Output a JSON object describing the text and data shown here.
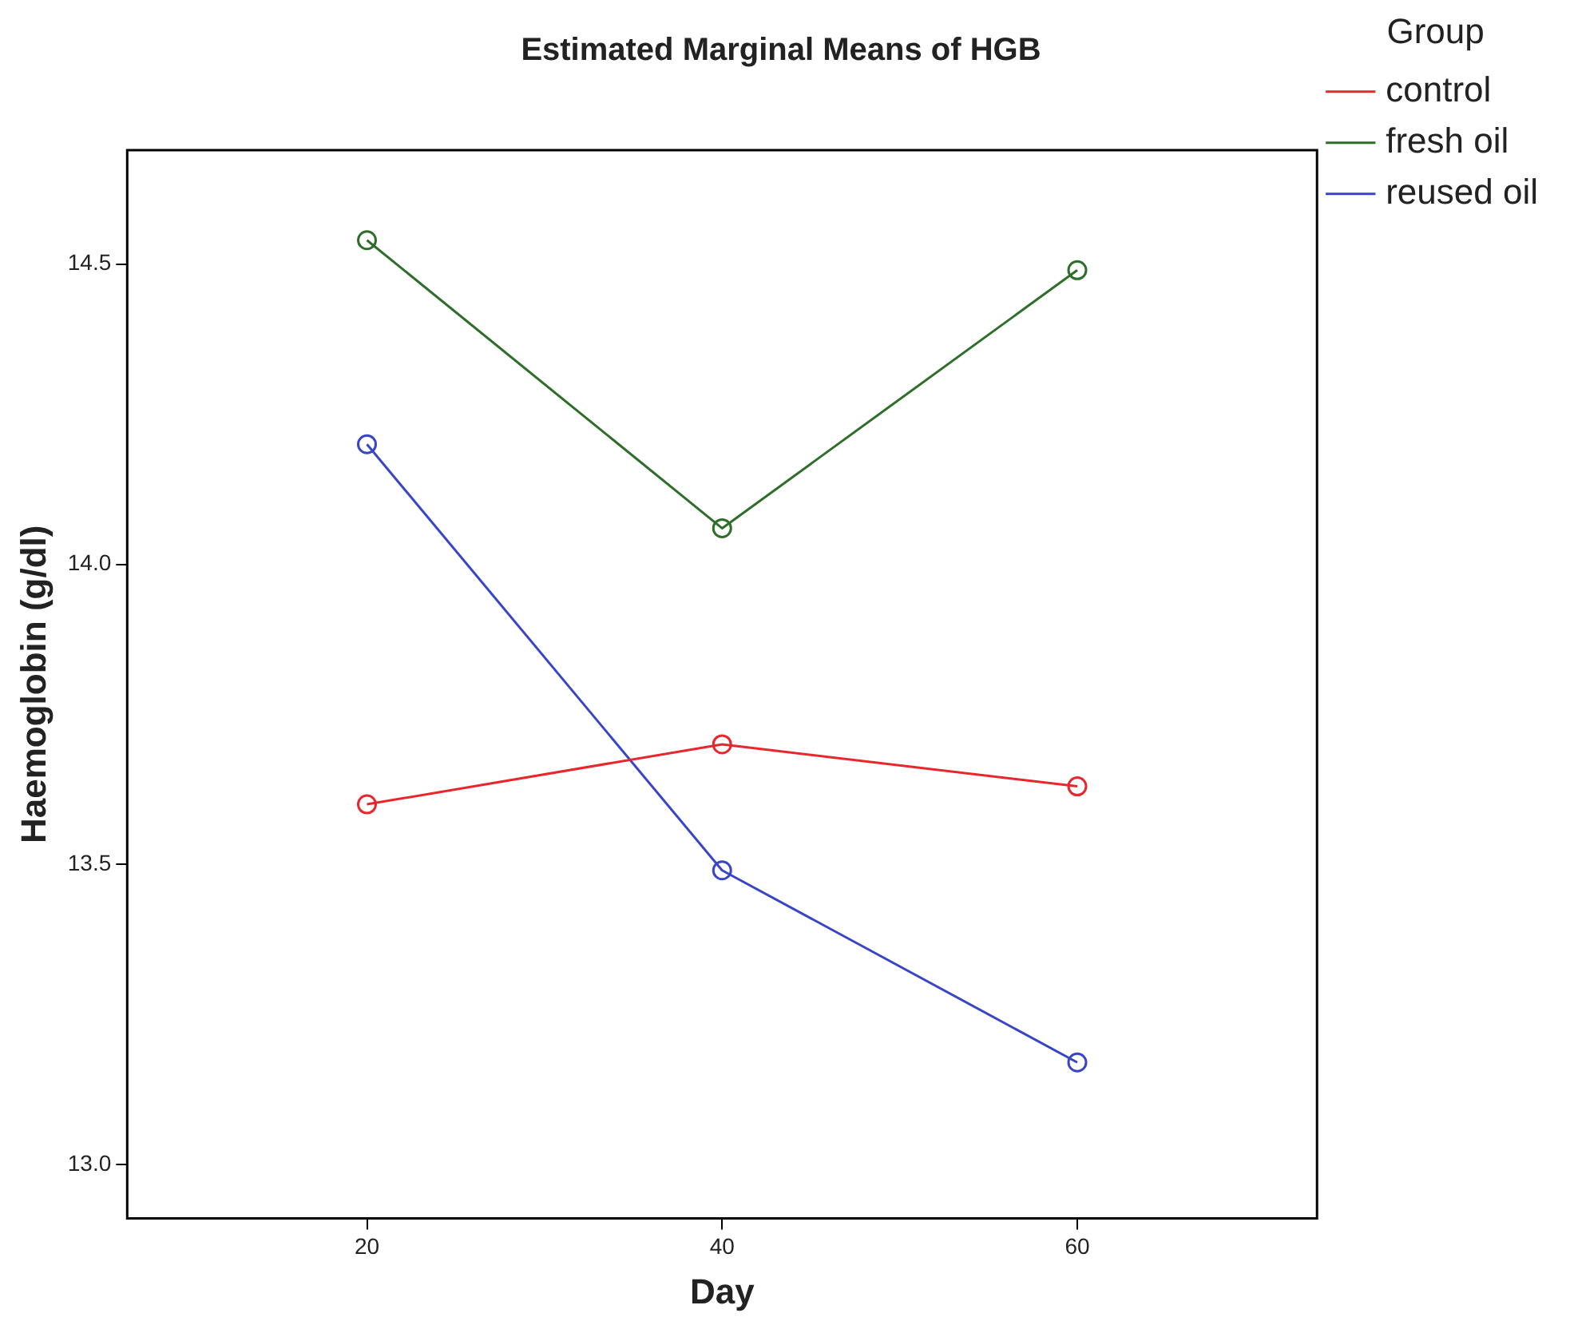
{
  "chart_data": {
    "type": "line",
    "title": "Estimated Marginal Means of HGB",
    "xlabel": "Day",
    "ylabel": "Haemoglobin (g/dl)",
    "legend_title": "Group",
    "x": [
      20,
      40,
      60
    ],
    "series": [
      {
        "name": "control",
        "color": "#e8262b",
        "values": [
          13.6,
          13.7,
          13.63
        ]
      },
      {
        "name": "fresh oil",
        "color": "#2e6e2a",
        "values": [
          14.54,
          14.06,
          14.49
        ]
      },
      {
        "name": "reused oil",
        "color": "#3845c8",
        "values": [
          14.2,
          13.49,
          13.17
        ]
      }
    ],
    "xlim": [
      6.5,
      73.5
    ],
    "xticks": [
      20,
      40,
      60
    ],
    "ylim": [
      12.91,
      14.69
    ],
    "yticks": [
      {
        "value": 13,
        "label": "13.0"
      },
      {
        "value": 13.5,
        "label": "13.5"
      },
      {
        "value": 14,
        "label": "14.0"
      },
      {
        "value": 14.5,
        "label": "14.5"
      }
    ],
    "grid": false,
    "legend": "right",
    "marker": "circle",
    "line_style": "solid"
  }
}
